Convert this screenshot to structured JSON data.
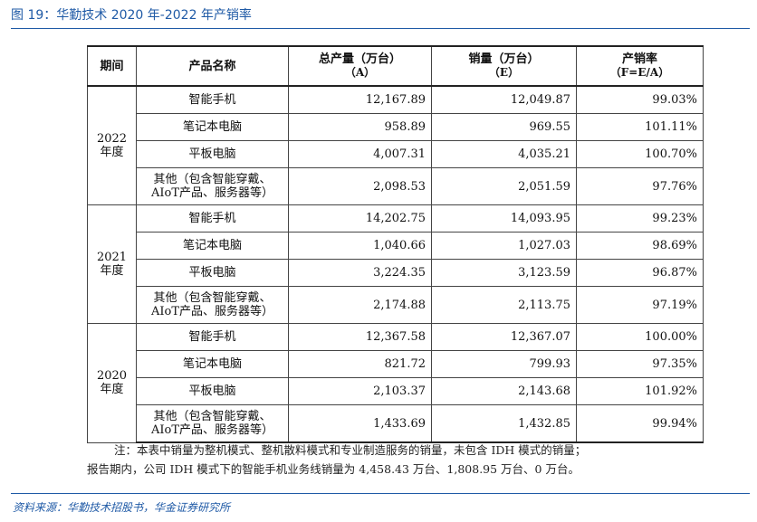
{
  "title": "图 19：华勤技术 2020 年-2022 年产销率",
  "headers": {
    "period": "期间",
    "product": "产品名称",
    "production": "总产量（万台）",
    "production_sub": "（A）",
    "sales": "销量（万台）",
    "sales_sub": "（E）",
    "ratio": "产销率",
    "ratio_sub": "（F=E/A）"
  },
  "years": [
    {
      "label_1": "2022",
      "label_2": "年度",
      "rows": [
        {
          "product": "智能手机",
          "production": "12,167.89",
          "sales": "12,049.87",
          "ratio": "99.03%"
        },
        {
          "product": "笔记本电脑",
          "production": "958.89",
          "sales": "969.55",
          "ratio": "101.11%"
        },
        {
          "product": "平板电脑",
          "production": "4,007.31",
          "sales": "4,035.21",
          "ratio": "100.70%"
        },
        {
          "product_line1": "其他（包含智能穿戴、",
          "product_line2": "AIoT产品、服务器等）",
          "production": "2,098.53",
          "sales": "2,051.59",
          "ratio": "97.76%"
        }
      ]
    },
    {
      "label_1": "2021",
      "label_2": "年度",
      "rows": [
        {
          "product": "智能手机",
          "production": "14,202.75",
          "sales": "14,093.95",
          "ratio": "99.23%"
        },
        {
          "product": "笔记本电脑",
          "production": "1,040.66",
          "sales": "1,027.03",
          "ratio": "98.69%"
        },
        {
          "product": "平板电脑",
          "production": "3,224.35",
          "sales": "3,123.59",
          "ratio": "96.87%"
        },
        {
          "product_line1": "其他（包含智能穿戴、",
          "product_line2": "AIoT产品、服务器等）",
          "production": "2,174.88",
          "sales": "2,113.75",
          "ratio": "97.19%"
        }
      ]
    },
    {
      "label_1": "2020",
      "label_2": "年度",
      "rows": [
        {
          "product": "智能手机",
          "production": "12,367.58",
          "sales": "12,367.07",
          "ratio": "100.00%"
        },
        {
          "product": "笔记本电脑",
          "production": "821.72",
          "sales": "799.93",
          "ratio": "97.35%"
        },
        {
          "product": "平板电脑",
          "production": "2,103.37",
          "sales": "2,143.68",
          "ratio": "101.92%"
        },
        {
          "product_line1": "其他（包含智能穿戴、",
          "product_line2": "AIoT产品、服务器等）",
          "production": "1,433.69",
          "sales": "1,432.85",
          "ratio": "99.94%"
        }
      ]
    }
  ],
  "note_line1": "注：本表中销量为整机模式、整机散料模式和专业制造服务的销量，未包含 IDH 模式的销量；",
  "note_line2": "报告期内，公司 IDH 模式下的智能手机业务线销量为 4,458.43 万台、1,808.95 万台、0 万台。",
  "source": "资料来源：华勤技术招股书，华金证券研究所"
}
